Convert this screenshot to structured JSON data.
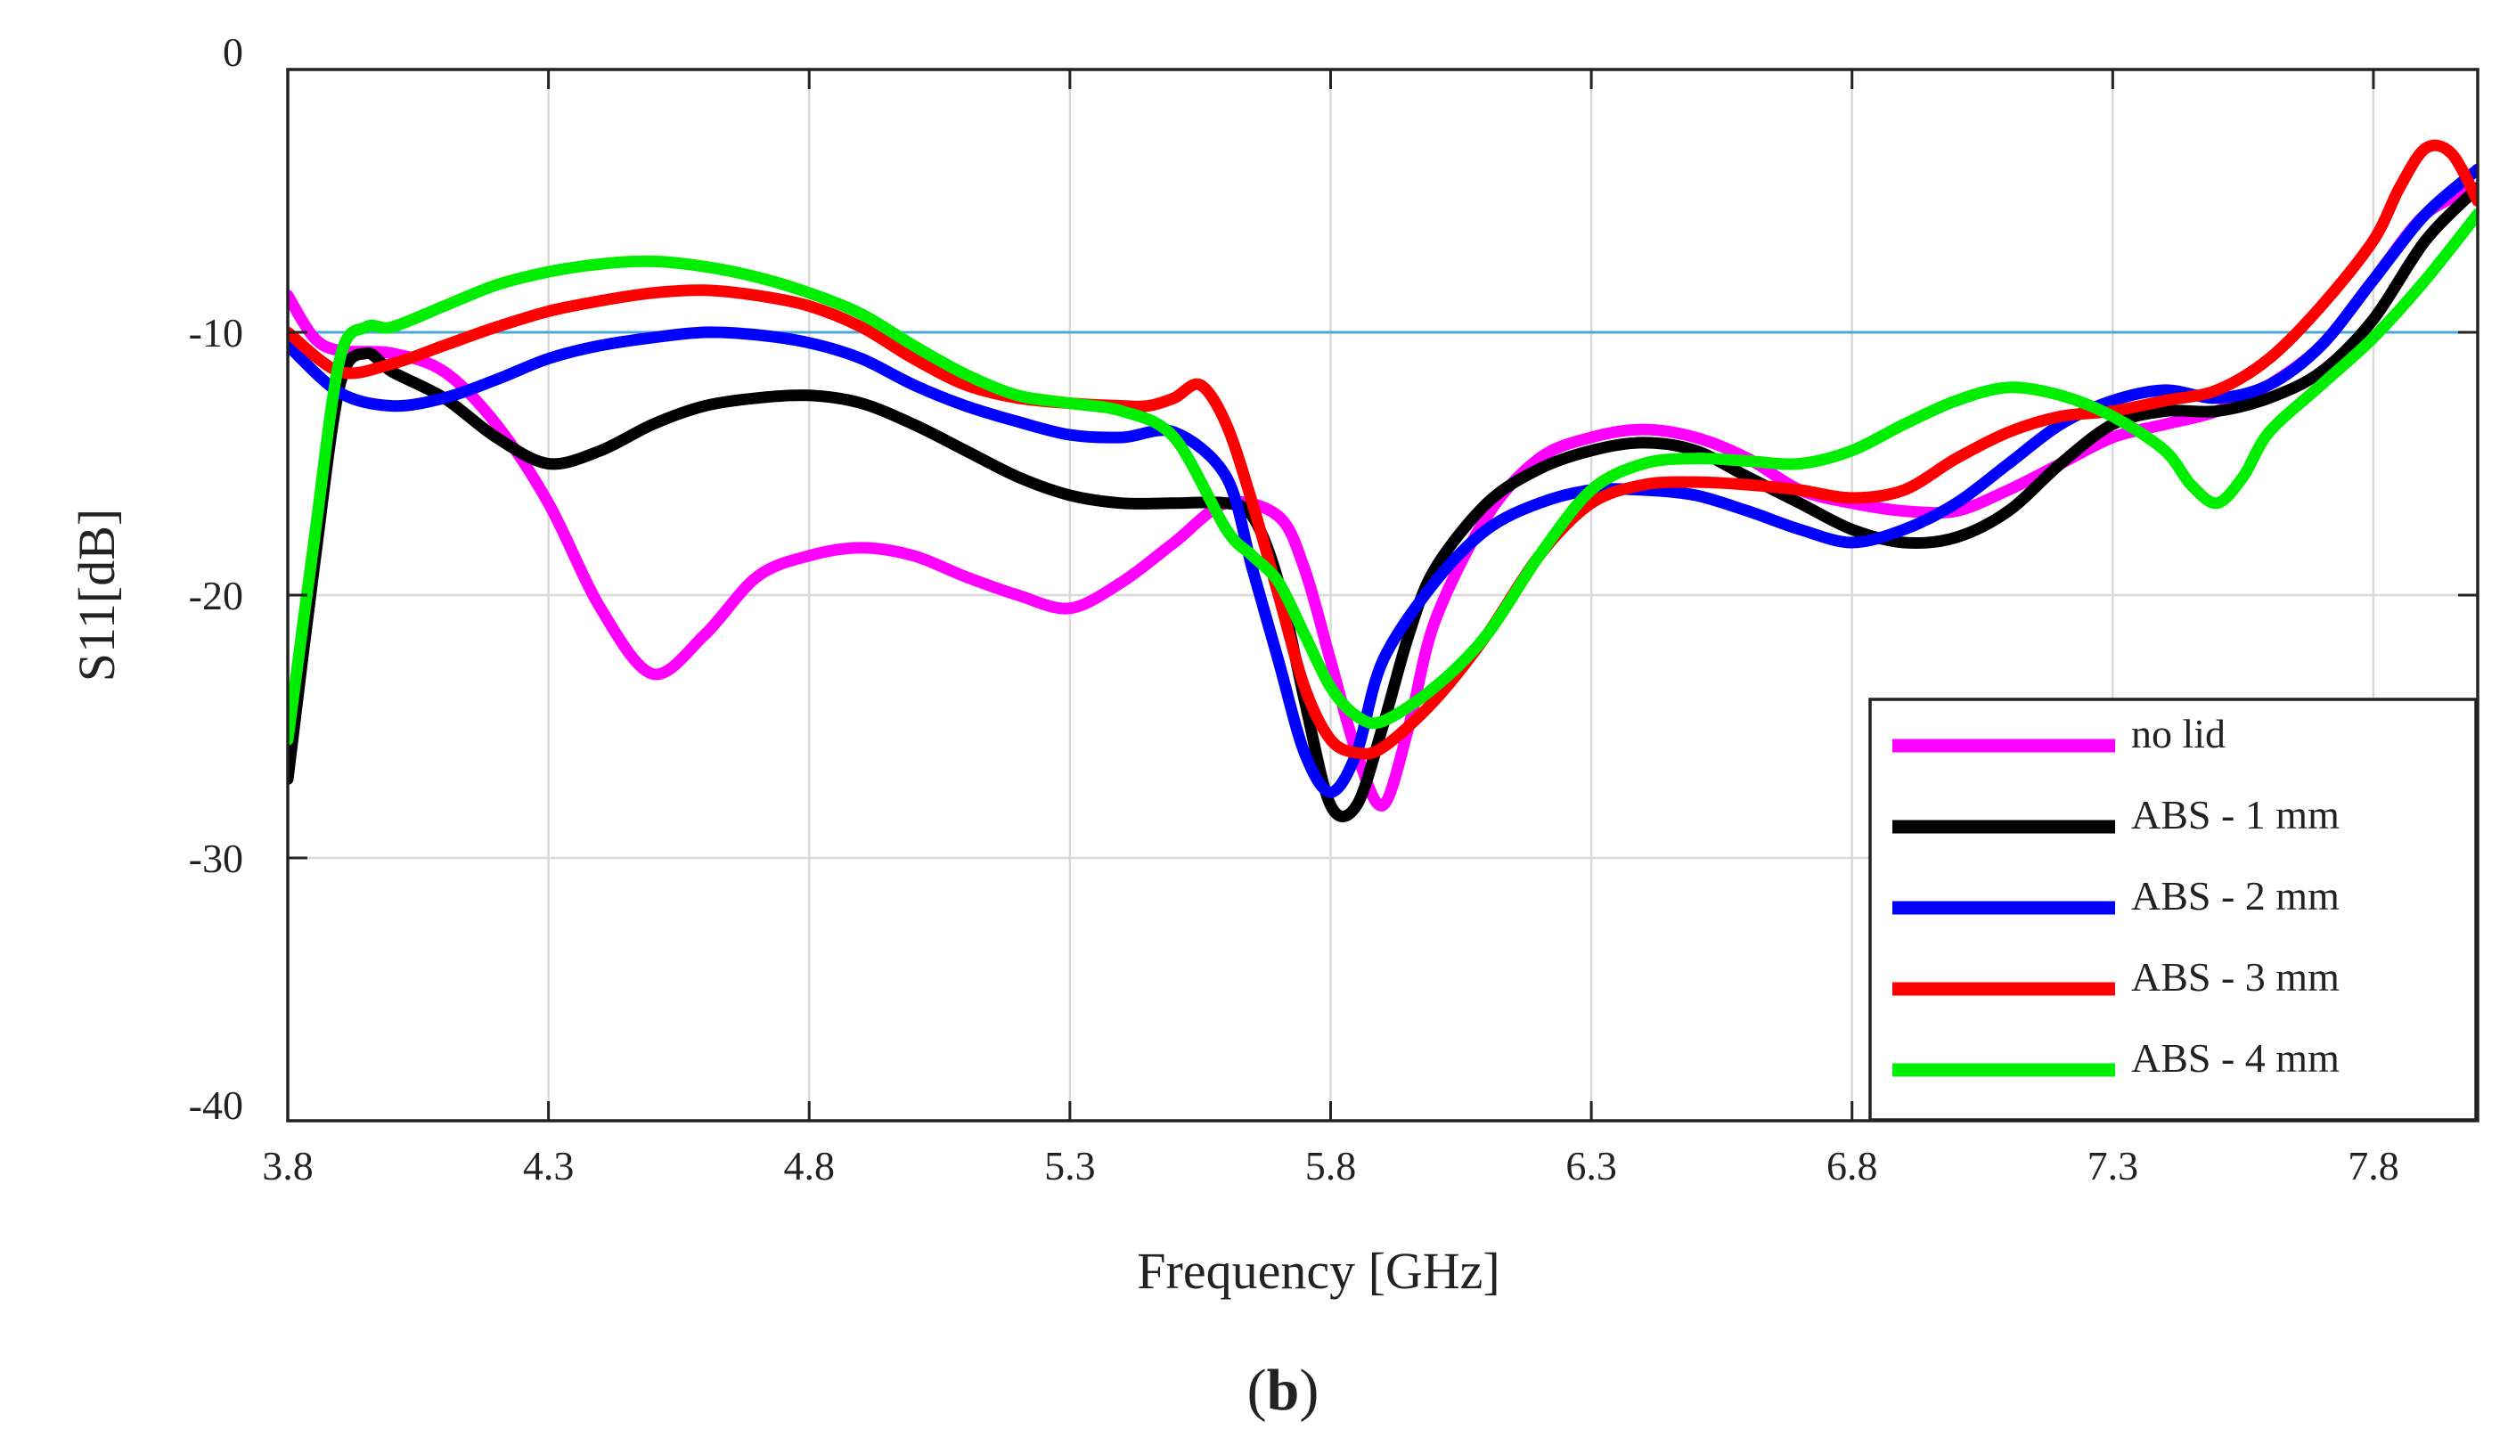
{
  "chart_data": {
    "type": "line",
    "caption": "(b)",
    "caption_prefix": "(",
    "caption_letter": "b",
    "caption_suffix": ")",
    "xlabel": "Frequency [GHz]",
    "ylabel": "S11[dB]",
    "xlim": [
      3.8,
      8.0
    ],
    "ylim": [
      -40,
      0
    ],
    "xticks": [
      3.8,
      4.3,
      4.8,
      5.3,
      5.8,
      6.3,
      6.8,
      7.3,
      7.8
    ],
    "xtick_labels": [
      "3.8",
      "4.3",
      "4.8",
      "5.3",
      "5.8",
      "6.3",
      "6.8",
      "7.3",
      "7.8"
    ],
    "yticks": [
      0,
      -10,
      -20,
      -30,
      -40
    ],
    "ytick_labels": [
      "0",
      "-10",
      "-20",
      "-30",
      "-40"
    ],
    "grid": true,
    "legend_position": "bottom-right",
    "reference_line": {
      "y": -10,
      "color": "#4aa8d8"
    },
    "series": [
      {
        "name": "no lid",
        "color": "#ff00ff",
        "x": [
          3.8,
          3.85,
          3.9,
          4.0,
          4.1,
          4.2,
          4.3,
          4.4,
          4.5,
          4.6,
          4.7,
          4.8,
          4.9,
          5.0,
          5.1,
          5.2,
          5.3,
          5.4,
          5.5,
          5.6,
          5.7,
          5.75,
          5.8,
          5.85,
          5.9,
          5.95,
          6.0,
          6.1,
          6.2,
          6.3,
          6.4,
          6.5,
          6.6,
          6.7,
          6.8,
          6.9,
          7.0,
          7.1,
          7.2,
          7.3,
          7.4,
          7.5,
          7.6,
          7.7,
          7.8,
          7.9,
          8.0
        ],
        "y": [
          -8.6,
          -10.2,
          -10.7,
          -10.8,
          -11.5,
          -13.5,
          -16.5,
          -20.5,
          -23.0,
          -21.5,
          -19.3,
          -18.5,
          -18.2,
          -18.5,
          -19.3,
          -20.0,
          -20.5,
          -19.5,
          -18.0,
          -16.5,
          -17.0,
          -19.0,
          -22.5,
          -26.0,
          -28.0,
          -25.0,
          -21.0,
          -17.0,
          -14.8,
          -14.0,
          -13.7,
          -14.0,
          -14.8,
          -16.0,
          -16.5,
          -16.8,
          -16.8,
          -16.0,
          -15.0,
          -14.0,
          -13.5,
          -13.0,
          -12.0,
          -10.5,
          -8.0,
          -5.5,
          -4.5
        ]
      },
      {
        "name": "ABS - 1 mm",
        "color": "#000000",
        "x": [
          3.8,
          3.85,
          3.9,
          3.95,
          4.0,
          4.1,
          4.2,
          4.3,
          4.4,
          4.5,
          4.6,
          4.7,
          4.8,
          4.9,
          5.0,
          5.1,
          5.2,
          5.3,
          5.4,
          5.5,
          5.6,
          5.65,
          5.7,
          5.75,
          5.8,
          5.85,
          5.9,
          5.95,
          6.0,
          6.1,
          6.2,
          6.3,
          6.4,
          6.5,
          6.6,
          6.7,
          6.8,
          6.9,
          7.0,
          7.1,
          7.2,
          7.3,
          7.4,
          7.5,
          7.6,
          7.7,
          7.8,
          7.9,
          8.0
        ],
        "y": [
          -27.0,
          -19.0,
          -12.0,
          -10.8,
          -11.5,
          -12.5,
          -14.0,
          -15.0,
          -14.5,
          -13.5,
          -12.8,
          -12.5,
          -12.4,
          -12.7,
          -13.5,
          -14.5,
          -15.5,
          -16.2,
          -16.5,
          -16.5,
          -16.5,
          -17.0,
          -19.5,
          -24.0,
          -28.0,
          -28.0,
          -25.0,
          -21.5,
          -19.0,
          -16.5,
          -15.2,
          -14.5,
          -14.2,
          -14.5,
          -15.5,
          -16.5,
          -17.5,
          -18.0,
          -17.8,
          -16.8,
          -15.0,
          -13.5,
          -13.0,
          -13.0,
          -12.5,
          -11.5,
          -9.5,
          -6.5,
          -4.5
        ]
      },
      {
        "name": "ABS - 2 mm",
        "color": "#0000ff",
        "x": [
          3.8,
          3.9,
          4.0,
          4.1,
          4.2,
          4.3,
          4.4,
          4.5,
          4.6,
          4.7,
          4.8,
          4.9,
          5.0,
          5.1,
          5.2,
          5.3,
          5.4,
          5.5,
          5.6,
          5.65,
          5.7,
          5.75,
          5.8,
          5.85,
          5.9,
          6.0,
          6.1,
          6.2,
          6.3,
          6.4,
          6.5,
          6.6,
          6.7,
          6.8,
          6.9,
          7.0,
          7.1,
          7.2,
          7.3,
          7.4,
          7.5,
          7.6,
          7.7,
          7.8,
          7.9,
          8.0
        ],
        "y": [
          -10.5,
          -12.3,
          -12.8,
          -12.5,
          -11.8,
          -11.0,
          -10.5,
          -10.2,
          -10.0,
          -10.1,
          -10.4,
          -11.0,
          -12.0,
          -12.8,
          -13.4,
          -13.9,
          -14.0,
          -13.8,
          -15.5,
          -19.0,
          -22.5,
          -26.0,
          -27.5,
          -26.0,
          -22.5,
          -19.5,
          -17.5,
          -16.5,
          -16.0,
          -16.0,
          -16.2,
          -16.8,
          -17.5,
          -18.0,
          -17.5,
          -16.5,
          -15.0,
          -13.5,
          -12.6,
          -12.2,
          -12.5,
          -12.0,
          -10.5,
          -8.0,
          -5.5,
          -3.8
        ]
      },
      {
        "name": "ABS - 3 mm",
        "color": "#ff0000",
        "x": [
          3.8,
          3.9,
          4.0,
          4.1,
          4.2,
          4.3,
          4.4,
          4.5,
          4.6,
          4.7,
          4.8,
          4.9,
          5.0,
          5.1,
          5.2,
          5.3,
          5.4,
          5.45,
          5.5,
          5.55,
          5.6,
          5.65,
          5.7,
          5.75,
          5.8,
          5.85,
          5.9,
          6.0,
          6.1,
          6.2,
          6.3,
          6.4,
          6.5,
          6.6,
          6.7,
          6.8,
          6.9,
          7.0,
          7.1,
          7.2,
          7.3,
          7.4,
          7.5,
          7.6,
          7.7,
          7.8,
          7.85,
          7.9,
          7.95,
          8.0
        ],
        "y": [
          -10.0,
          -11.5,
          -11.2,
          -10.5,
          -9.8,
          -9.2,
          -8.8,
          -8.5,
          -8.4,
          -8.6,
          -9.0,
          -9.8,
          -11.0,
          -12.0,
          -12.5,
          -12.7,
          -12.8,
          -12.8,
          -12.5,
          -12.0,
          -13.5,
          -16.5,
          -20.0,
          -23.5,
          -25.5,
          -26.0,
          -25.8,
          -24.0,
          -21.5,
          -18.5,
          -16.5,
          -15.8,
          -15.7,
          -15.8,
          -16.0,
          -16.3,
          -16.0,
          -14.8,
          -13.8,
          -13.2,
          -13.0,
          -12.6,
          -12.2,
          -11.0,
          -9.0,
          -6.5,
          -4.5,
          -3.0,
          -3.2,
          -5.0
        ]
      },
      {
        "name": "ABS - 4 mm",
        "color": "#00ee00",
        "x": [
          3.8,
          3.85,
          3.9,
          3.95,
          4.0,
          4.1,
          4.2,
          4.3,
          4.4,
          4.5,
          4.6,
          4.7,
          4.8,
          4.9,
          5.0,
          5.1,
          5.2,
          5.3,
          5.4,
          5.5,
          5.6,
          5.65,
          5.7,
          5.75,
          5.8,
          5.85,
          5.9,
          6.0,
          6.1,
          6.2,
          6.3,
          6.4,
          6.5,
          6.6,
          6.7,
          6.8,
          6.9,
          7.0,
          7.1,
          7.2,
          7.3,
          7.4,
          7.45,
          7.5,
          7.55,
          7.6,
          7.7,
          7.8,
          7.9,
          8.0
        ],
        "y": [
          -25.5,
          -18.0,
          -11.0,
          -9.8,
          -9.8,
          -9.0,
          -8.2,
          -7.7,
          -7.4,
          -7.3,
          -7.5,
          -7.9,
          -8.5,
          -9.3,
          -10.5,
          -11.6,
          -12.4,
          -12.7,
          -13.0,
          -14.0,
          -17.5,
          -18.5,
          -19.5,
          -21.5,
          -23.5,
          -24.6,
          -24.8,
          -23.5,
          -21.5,
          -18.5,
          -16.0,
          -15.0,
          -14.8,
          -14.9,
          -15.0,
          -14.5,
          -13.5,
          -12.6,
          -12.1,
          -12.4,
          -13.2,
          -14.5,
          -15.8,
          -16.5,
          -15.5,
          -13.8,
          -12.0,
          -10.2,
          -8.0,
          -5.5
        ]
      }
    ]
  }
}
